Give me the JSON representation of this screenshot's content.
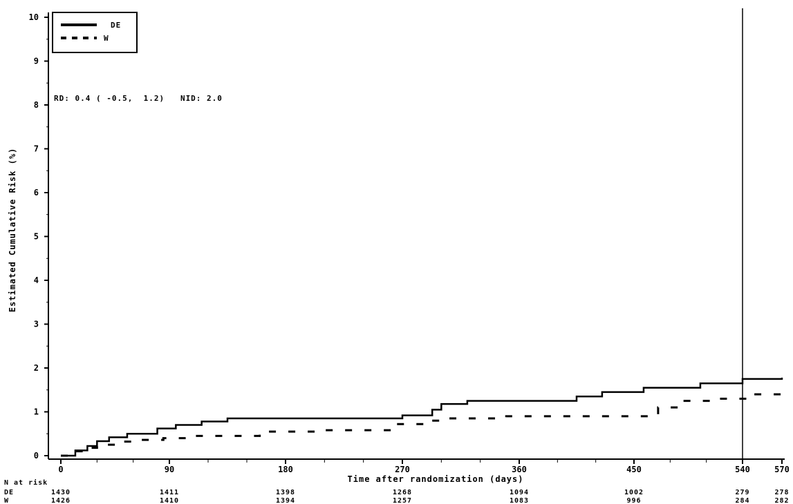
{
  "chart_data": {
    "type": "line",
    "title": "",
    "xlabel": "Time after randomization (days)",
    "ylabel": "Estimated Cumulative Risk (%)",
    "xlim": [
      0,
      570
    ],
    "ylim": [
      0,
      10
    ],
    "x_ticks": [
      "0",
      "90",
      "180",
      "270",
      "360",
      "450",
      "540",
      "570"
    ],
    "y_ticks": [
      "0",
      "1",
      "2",
      "3",
      "4",
      "5",
      "6",
      "7",
      "8",
      "9",
      "10"
    ],
    "reference_line_x": 540,
    "legend": {
      "placement": "top-left"
    },
    "annotation": "RD: 0.4 ( -0.5,  1.2)   NID: 2.0",
    "series": [
      {
        "name": "DE",
        "style": "solid",
        "color": "#000000",
        "x": [
          0,
          12,
          22,
          30,
          40,
          55,
          80,
          95,
          115,
          135,
          270,
          293,
          300,
          320,
          405,
          425,
          458,
          505,
          540,
          570
        ],
        "y": [
          0,
          0.12,
          0.22,
          0.33,
          0.42,
          0.5,
          0.62,
          0.7,
          0.78,
          0.85,
          0.92,
          1.05,
          1.18,
          1.25,
          1.35,
          1.45,
          1.55,
          1.65,
          1.75,
          1.78
        ]
      },
      {
        "name": "W",
        "style": "dashed",
        "color": "#000000",
        "x": [
          0,
          12,
          20,
          30,
          45,
          60,
          85,
          105,
          160,
          210,
          265,
          293,
          300,
          350,
          450,
          470,
          490,
          520,
          545,
          570
        ],
        "y": [
          0,
          0.1,
          0.18,
          0.25,
          0.32,
          0.36,
          0.4,
          0.45,
          0.55,
          0.58,
          0.72,
          0.8,
          0.85,
          0.9,
          0.9,
          1.1,
          1.25,
          1.3,
          1.4,
          1.42
        ]
      }
    ],
    "at_risk": {
      "title": "N at risk",
      "rows": [
        {
          "label": "DE",
          "values": [
            "1430",
            "1411",
            "1398",
            "1268",
            "1094",
            "1002",
            "279",
            "278"
          ]
        },
        {
          "label": "W",
          "values": [
            "1426",
            "1410",
            "1394",
            "1257",
            "1083",
            "996",
            "284",
            "282"
          ]
        }
      ]
    }
  }
}
